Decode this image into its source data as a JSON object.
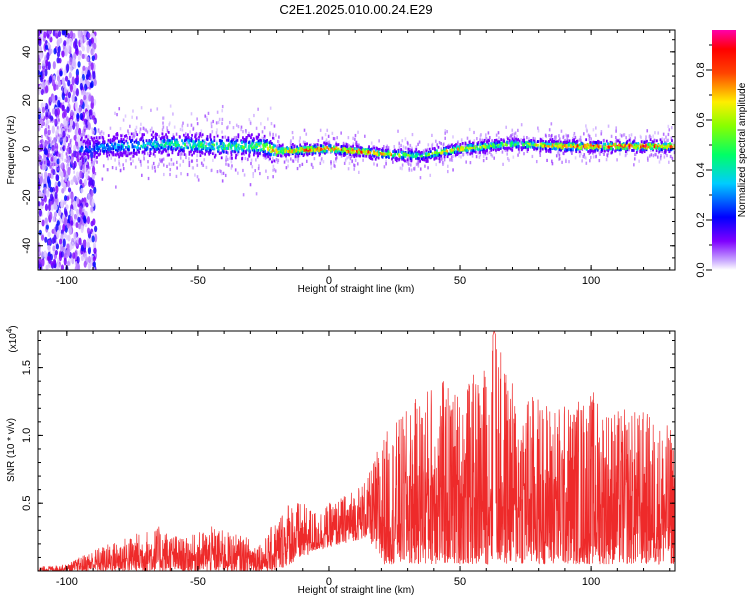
{
  "title": "C2E1.2025.010.00.24.E29",
  "chart_data": [
    {
      "type": "heatmap",
      "title": "C2E1.2025.010.00.24.E29",
      "xlabel": "Height of straight line (km)",
      "ylabel": "Frequency (Hz)",
      "xlim": [
        -111,
        132
      ],
      "ylim": [
        -50,
        49
      ],
      "x_ticks": [
        -100,
        -50,
        0,
        50,
        100
      ],
      "y_ticks": [
        -40,
        -20,
        0,
        20,
        40
      ],
      "colorbar": {
        "label": "Normalized spectral amplitude",
        "range": [
          0.0,
          0.96
        ],
        "ticks": [
          0.0,
          0.2,
          0.4,
          0.6,
          0.8
        ],
        "tick_labels": [
          "0.0",
          "0.2",
          "0.4",
          "0.6",
          "0.8"
        ],
        "colors": [
          "#ffffff",
          "#7f00ff",
          "#0000ff",
          "#00ffff",
          "#00ff00",
          "#ffff00",
          "#ff0000",
          "#ff00ff"
        ]
      },
      "ridge": [
        {
          "x": -95,
          "y": 0
        },
        {
          "x": -80,
          "y": 1
        },
        {
          "x": -60,
          "y": 2
        },
        {
          "x": -40,
          "y": 1
        },
        {
          "x": -25,
          "y": 1
        },
        {
          "x": -20,
          "y": -1
        },
        {
          "x": 0,
          "y": 0
        },
        {
          "x": 20,
          "y": -2
        },
        {
          "x": 35,
          "y": -3
        },
        {
          "x": 50,
          "y": 0
        },
        {
          "x": 70,
          "y": 2
        },
        {
          "x": 90,
          "y": 1
        },
        {
          "x": 110,
          "y": 1
        },
        {
          "x": 132,
          "y": 1
        }
      ],
      "peak_amplitude": [
        {
          "x": -95,
          "v": 0.3
        },
        {
          "x": -60,
          "v": 0.5
        },
        {
          "x": -30,
          "v": 0.55
        },
        {
          "x": -20,
          "v": 0.8
        },
        {
          "x": 0,
          "v": 0.92
        },
        {
          "x": 20,
          "v": 0.85
        },
        {
          "x": 35,
          "v": 0.55
        },
        {
          "x": 50,
          "v": 0.8
        },
        {
          "x": 70,
          "v": 0.55
        },
        {
          "x": 90,
          "v": 0.9
        },
        {
          "x": 132,
          "v": 0.92
        }
      ]
    },
    {
      "type": "line",
      "xlabel": "Height of straight line (km)",
      "ylabel": "SNR (10 * v/v)",
      "y_multiplier": "(x10",
      "y_multiplier_exp": "4",
      "y_multiplier_close": ")",
      "xlim": [
        -111,
        132
      ],
      "ylim": [
        0,
        1.77
      ],
      "x_ticks": [
        -100,
        -50,
        0,
        50,
        100
      ],
      "y_ticks": [
        0.5,
        1.0,
        1.5
      ],
      "y_tick_labels": [
        "0.5",
        "1.0",
        "1.5"
      ],
      "color": "#ee2a2a",
      "envelope": [
        {
          "x": -111,
          "lo": 0.0,
          "hi": 0.03
        },
        {
          "x": -100,
          "lo": 0.0,
          "hi": 0.05
        },
        {
          "x": -90,
          "lo": 0.0,
          "hi": 0.16
        },
        {
          "x": -75,
          "lo": 0.0,
          "hi": 0.27
        },
        {
          "x": -65,
          "lo": 0.0,
          "hi": 0.33
        },
        {
          "x": -55,
          "lo": 0.0,
          "hi": 0.24
        },
        {
          "x": -45,
          "lo": 0.0,
          "hi": 0.33
        },
        {
          "x": -35,
          "lo": 0.0,
          "hi": 0.27
        },
        {
          "x": -25,
          "lo": 0.0,
          "hi": 0.22
        },
        {
          "x": -20,
          "lo": 0.0,
          "hi": 0.4
        },
        {
          "x": -15,
          "lo": 0.05,
          "hi": 0.55
        },
        {
          "x": -5,
          "lo": 0.15,
          "hi": 0.45
        },
        {
          "x": 5,
          "lo": 0.2,
          "hi": 0.55
        },
        {
          "x": 15,
          "lo": 0.25,
          "hi": 0.7
        },
        {
          "x": 20,
          "lo": 0.05,
          "hi": 1.0
        },
        {
          "x": 30,
          "lo": 0.05,
          "hi": 1.2
        },
        {
          "x": 40,
          "lo": 0.05,
          "hi": 1.45
        },
        {
          "x": 50,
          "lo": 0.05,
          "hi": 1.35
        },
        {
          "x": 60,
          "lo": 0.05,
          "hi": 1.55
        },
        {
          "x": 63,
          "lo": 0.05,
          "hi": 1.77
        },
        {
          "x": 70,
          "lo": 0.05,
          "hi": 1.4
        },
        {
          "x": 80,
          "lo": 0.05,
          "hi": 1.3
        },
        {
          "x": 90,
          "lo": 0.05,
          "hi": 1.25
        },
        {
          "x": 100,
          "lo": 0.05,
          "hi": 1.35
        },
        {
          "x": 110,
          "lo": 0.05,
          "hi": 1.2
        },
        {
          "x": 120,
          "lo": 0.05,
          "hi": 1.2
        },
        {
          "x": 132,
          "lo": 0.05,
          "hi": 1.05
        }
      ]
    }
  ]
}
